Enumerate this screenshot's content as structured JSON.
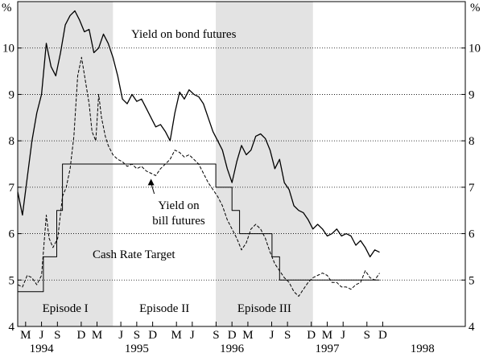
{
  "chart_data": {
    "type": "line",
    "y_unit_label": "%",
    "ylim": [
      4,
      11
    ],
    "y_ticks": [
      4,
      5,
      6,
      7,
      8,
      9,
      10
    ],
    "x_domain": [
      1994.25,
      1998.95
    ],
    "gridlines": "horizontal dotted at each integer y",
    "month_ticks": [
      {
        "x": 1994.333,
        "label": "M"
      },
      {
        "x": 1994.5,
        "label": "J"
      },
      {
        "x": 1994.667,
        "label": "S"
      },
      {
        "x": 1994.917,
        "label": "D"
      },
      {
        "x": 1995.083,
        "label": "M"
      },
      {
        "x": 1995.333,
        "label": "J"
      },
      {
        "x": 1995.5,
        "label": "S"
      },
      {
        "x": 1995.667,
        "label": "D"
      },
      {
        "x": 1995.917,
        "label": "M"
      },
      {
        "x": 1996.083,
        "label": "J"
      },
      {
        "x": 1996.333,
        "label": "S"
      },
      {
        "x": 1996.5,
        "label": "D"
      },
      {
        "x": 1996.667,
        "label": "M"
      },
      {
        "x": 1996.917,
        "label": "J"
      },
      {
        "x": 1997.083,
        "label": "S"
      },
      {
        "x": 1997.333,
        "label": "D"
      },
      {
        "x": 1997.5,
        "label": "M"
      },
      {
        "x": 1997.667,
        "label": "J"
      },
      {
        "x": 1997.917,
        "label": "S"
      },
      {
        "x": 1998.083,
        "label": "D"
      }
    ],
    "year_labels": [
      {
        "x": 1994.5,
        "label": "1994"
      },
      {
        "x": 1995.5,
        "label": "1995"
      },
      {
        "x": 1996.5,
        "label": "1996"
      },
      {
        "x": 1997.5,
        "label": "1997"
      },
      {
        "x": 1998.5,
        "label": "1998"
      }
    ],
    "shaded_episodes": [
      {
        "start": 1994.25,
        "end": 1995.25,
        "label": "Episode I"
      },
      {
        "start": 1996.33,
        "end": 1997.35,
        "label": "Episode III"
      }
    ],
    "episode_labels": [
      {
        "x": 1994.75,
        "label": "Episode I"
      },
      {
        "x": 1995.79,
        "label": "Episode II"
      },
      {
        "x": 1996.84,
        "label": "Episode III"
      }
    ],
    "annotations": {
      "bond": "Yield on bond futures",
      "bill_line1": "Yield on",
      "bill_line2": "bill futures",
      "cash": "Cash Rate Target"
    },
    "series": [
      {
        "name": "Yield on bond futures",
        "style": "solid",
        "points": [
          [
            1994.25,
            6.9
          ],
          [
            1994.3,
            6.4
          ],
          [
            1994.35,
            7.2
          ],
          [
            1994.4,
            8.0
          ],
          [
            1994.45,
            8.6
          ],
          [
            1994.5,
            9.0
          ],
          [
            1994.55,
            10.1
          ],
          [
            1994.6,
            9.6
          ],
          [
            1994.65,
            9.4
          ],
          [
            1994.7,
            9.9
          ],
          [
            1994.75,
            10.5
          ],
          [
            1994.8,
            10.7
          ],
          [
            1994.85,
            10.8
          ],
          [
            1994.9,
            10.6
          ],
          [
            1994.95,
            10.35
          ],
          [
            1995.0,
            10.4
          ],
          [
            1995.05,
            9.9
          ],
          [
            1995.1,
            10.0
          ],
          [
            1995.15,
            10.3
          ],
          [
            1995.2,
            10.1
          ],
          [
            1995.25,
            9.8
          ],
          [
            1995.3,
            9.4
          ],
          [
            1995.35,
            8.9
          ],
          [
            1995.4,
            8.8
          ],
          [
            1995.45,
            9.0
          ],
          [
            1995.5,
            8.85
          ],
          [
            1995.55,
            8.9
          ],
          [
            1995.6,
            8.7
          ],
          [
            1995.65,
            8.5
          ],
          [
            1995.7,
            8.3
          ],
          [
            1995.75,
            8.35
          ],
          [
            1995.8,
            8.2
          ],
          [
            1995.85,
            8.0
          ],
          [
            1995.9,
            8.6
          ],
          [
            1995.95,
            9.05
          ],
          [
            1996.0,
            8.9
          ],
          [
            1996.05,
            9.1
          ],
          [
            1996.1,
            9.0
          ],
          [
            1996.15,
            8.95
          ],
          [
            1996.2,
            8.8
          ],
          [
            1996.25,
            8.5
          ],
          [
            1996.3,
            8.2
          ],
          [
            1996.35,
            8.0
          ],
          [
            1996.4,
            7.8
          ],
          [
            1996.45,
            7.4
          ],
          [
            1996.5,
            7.1
          ],
          [
            1996.55,
            7.55
          ],
          [
            1996.6,
            7.9
          ],
          [
            1996.65,
            7.7
          ],
          [
            1996.7,
            7.8
          ],
          [
            1996.75,
            8.1
          ],
          [
            1996.8,
            8.15
          ],
          [
            1996.85,
            8.05
          ],
          [
            1996.9,
            7.8
          ],
          [
            1996.95,
            7.4
          ],
          [
            1997.0,
            7.6
          ],
          [
            1997.05,
            7.1
          ],
          [
            1997.1,
            6.95
          ],
          [
            1997.15,
            6.6
          ],
          [
            1997.2,
            6.5
          ],
          [
            1997.25,
            6.45
          ],
          [
            1997.3,
            6.3
          ],
          [
            1997.35,
            6.1
          ],
          [
            1997.4,
            6.2
          ],
          [
            1997.45,
            6.1
          ],
          [
            1997.5,
            5.95
          ],
          [
            1997.55,
            6.0
          ],
          [
            1997.6,
            6.1
          ],
          [
            1997.65,
            5.95
          ],
          [
            1997.7,
            6.0
          ],
          [
            1997.75,
            5.95
          ],
          [
            1997.8,
            5.75
          ],
          [
            1997.85,
            5.85
          ],
          [
            1997.9,
            5.7
          ],
          [
            1997.95,
            5.5
          ],
          [
            1998.0,
            5.65
          ],
          [
            1998.05,
            5.6
          ]
        ]
      },
      {
        "name": "Yield on bill futures",
        "style": "dashed",
        "points": [
          [
            1994.25,
            4.9
          ],
          [
            1994.3,
            4.85
          ],
          [
            1994.35,
            5.1
          ],
          [
            1994.4,
            5.05
          ],
          [
            1994.45,
            4.9
          ],
          [
            1994.5,
            5.1
          ],
          [
            1994.55,
            6.4
          ],
          [
            1994.58,
            5.9
          ],
          [
            1994.62,
            5.7
          ],
          [
            1994.67,
            5.9
          ],
          [
            1994.72,
            6.8
          ],
          [
            1994.76,
            7.0
          ],
          [
            1994.8,
            7.4
          ],
          [
            1994.84,
            8.1
          ],
          [
            1994.88,
            9.4
          ],
          [
            1994.92,
            9.8
          ],
          [
            1994.96,
            9.3
          ],
          [
            1995.0,
            8.8
          ],
          [
            1995.03,
            8.2
          ],
          [
            1995.07,
            8.0
          ],
          [
            1995.1,
            9.0
          ],
          [
            1995.13,
            8.5
          ],
          [
            1995.17,
            8.1
          ],
          [
            1995.2,
            7.9
          ],
          [
            1995.25,
            7.7
          ],
          [
            1995.3,
            7.6
          ],
          [
            1995.35,
            7.55
          ],
          [
            1995.4,
            7.45
          ],
          [
            1995.45,
            7.5
          ],
          [
            1995.5,
            7.4
          ],
          [
            1995.55,
            7.45
          ],
          [
            1995.6,
            7.35
          ],
          [
            1995.65,
            7.3
          ],
          [
            1995.7,
            7.25
          ],
          [
            1995.75,
            7.4
          ],
          [
            1995.8,
            7.5
          ],
          [
            1995.85,
            7.6
          ],
          [
            1995.9,
            7.8
          ],
          [
            1995.95,
            7.75
          ],
          [
            1996.0,
            7.65
          ],
          [
            1996.05,
            7.7
          ],
          [
            1996.1,
            7.6
          ],
          [
            1996.15,
            7.5
          ],
          [
            1996.2,
            7.3
          ],
          [
            1996.25,
            7.1
          ],
          [
            1996.3,
            6.95
          ],
          [
            1996.35,
            6.8
          ],
          [
            1996.4,
            6.6
          ],
          [
            1996.45,
            6.3
          ],
          [
            1996.5,
            6.1
          ],
          [
            1996.55,
            5.9
          ],
          [
            1996.6,
            5.65
          ],
          [
            1996.65,
            5.8
          ],
          [
            1996.7,
            6.1
          ],
          [
            1996.75,
            6.2
          ],
          [
            1996.8,
            6.1
          ],
          [
            1996.85,
            5.9
          ],
          [
            1996.9,
            5.6
          ],
          [
            1996.95,
            5.35
          ],
          [
            1997.0,
            5.2
          ],
          [
            1997.05,
            5.05
          ],
          [
            1997.1,
            4.95
          ],
          [
            1997.15,
            4.75
          ],
          [
            1997.2,
            4.65
          ],
          [
            1997.25,
            4.8
          ],
          [
            1997.3,
            4.95
          ],
          [
            1997.35,
            5.05
          ],
          [
            1997.4,
            5.1
          ],
          [
            1997.45,
            5.15
          ],
          [
            1997.5,
            5.1
          ],
          [
            1997.55,
            4.95
          ],
          [
            1997.6,
            4.95
          ],
          [
            1997.65,
            4.85
          ],
          [
            1997.7,
            4.85
          ],
          [
            1997.75,
            4.8
          ],
          [
            1997.8,
            4.9
          ],
          [
            1997.85,
            4.95
          ],
          [
            1997.9,
            5.2
          ],
          [
            1997.95,
            5.05
          ],
          [
            1998.0,
            5.0
          ],
          [
            1998.05,
            5.15
          ]
        ]
      },
      {
        "name": "Cash Rate Target",
        "style": "step",
        "points": [
          [
            1994.25,
            4.75
          ],
          [
            1994.52,
            4.75
          ],
          [
            1994.52,
            5.5
          ],
          [
            1994.66,
            5.5
          ],
          [
            1994.66,
            6.5
          ],
          [
            1994.72,
            6.5
          ],
          [
            1994.72,
            7.5
          ],
          [
            1996.33,
            7.5
          ],
          [
            1996.33,
            7.0
          ],
          [
            1996.5,
            7.0
          ],
          [
            1996.5,
            6.5
          ],
          [
            1996.58,
            6.5
          ],
          [
            1996.58,
            6.0
          ],
          [
            1996.92,
            6.0
          ],
          [
            1996.92,
            5.5
          ],
          [
            1997.0,
            5.5
          ],
          [
            1997.0,
            5.0
          ],
          [
            1998.05,
            5.0
          ]
        ]
      }
    ]
  }
}
